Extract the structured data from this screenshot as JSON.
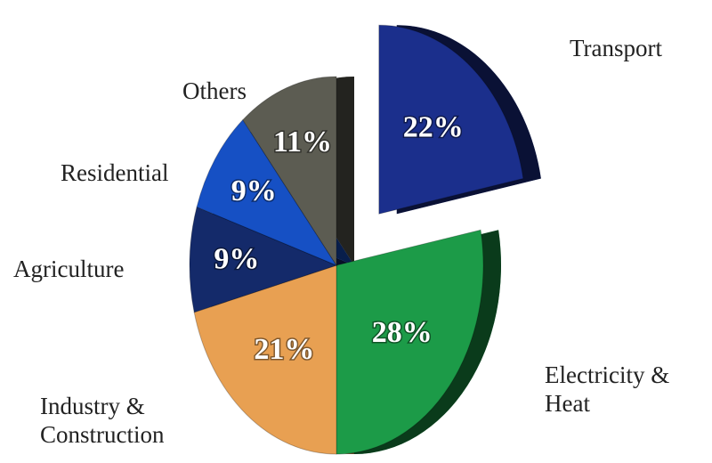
{
  "chart_data": {
    "type": "pie",
    "categories": [
      "Transport",
      "Electricity & Heat",
      "Industry & Construction",
      "Agriculture",
      "Residential",
      "Others"
    ],
    "values": [
      22,
      28,
      21,
      9,
      9,
      11
    ],
    "value_labels": [
      "22%",
      "28%",
      "21%",
      "9%",
      "9%",
      "11%"
    ],
    "colors": [
      "#1b2f8c",
      "#1c9b48",
      "#e8a052",
      "#142a6a",
      "#1650c4",
      "#5c5c52"
    ],
    "exploded": [
      true,
      false,
      false,
      false,
      false,
      false
    ]
  }
}
